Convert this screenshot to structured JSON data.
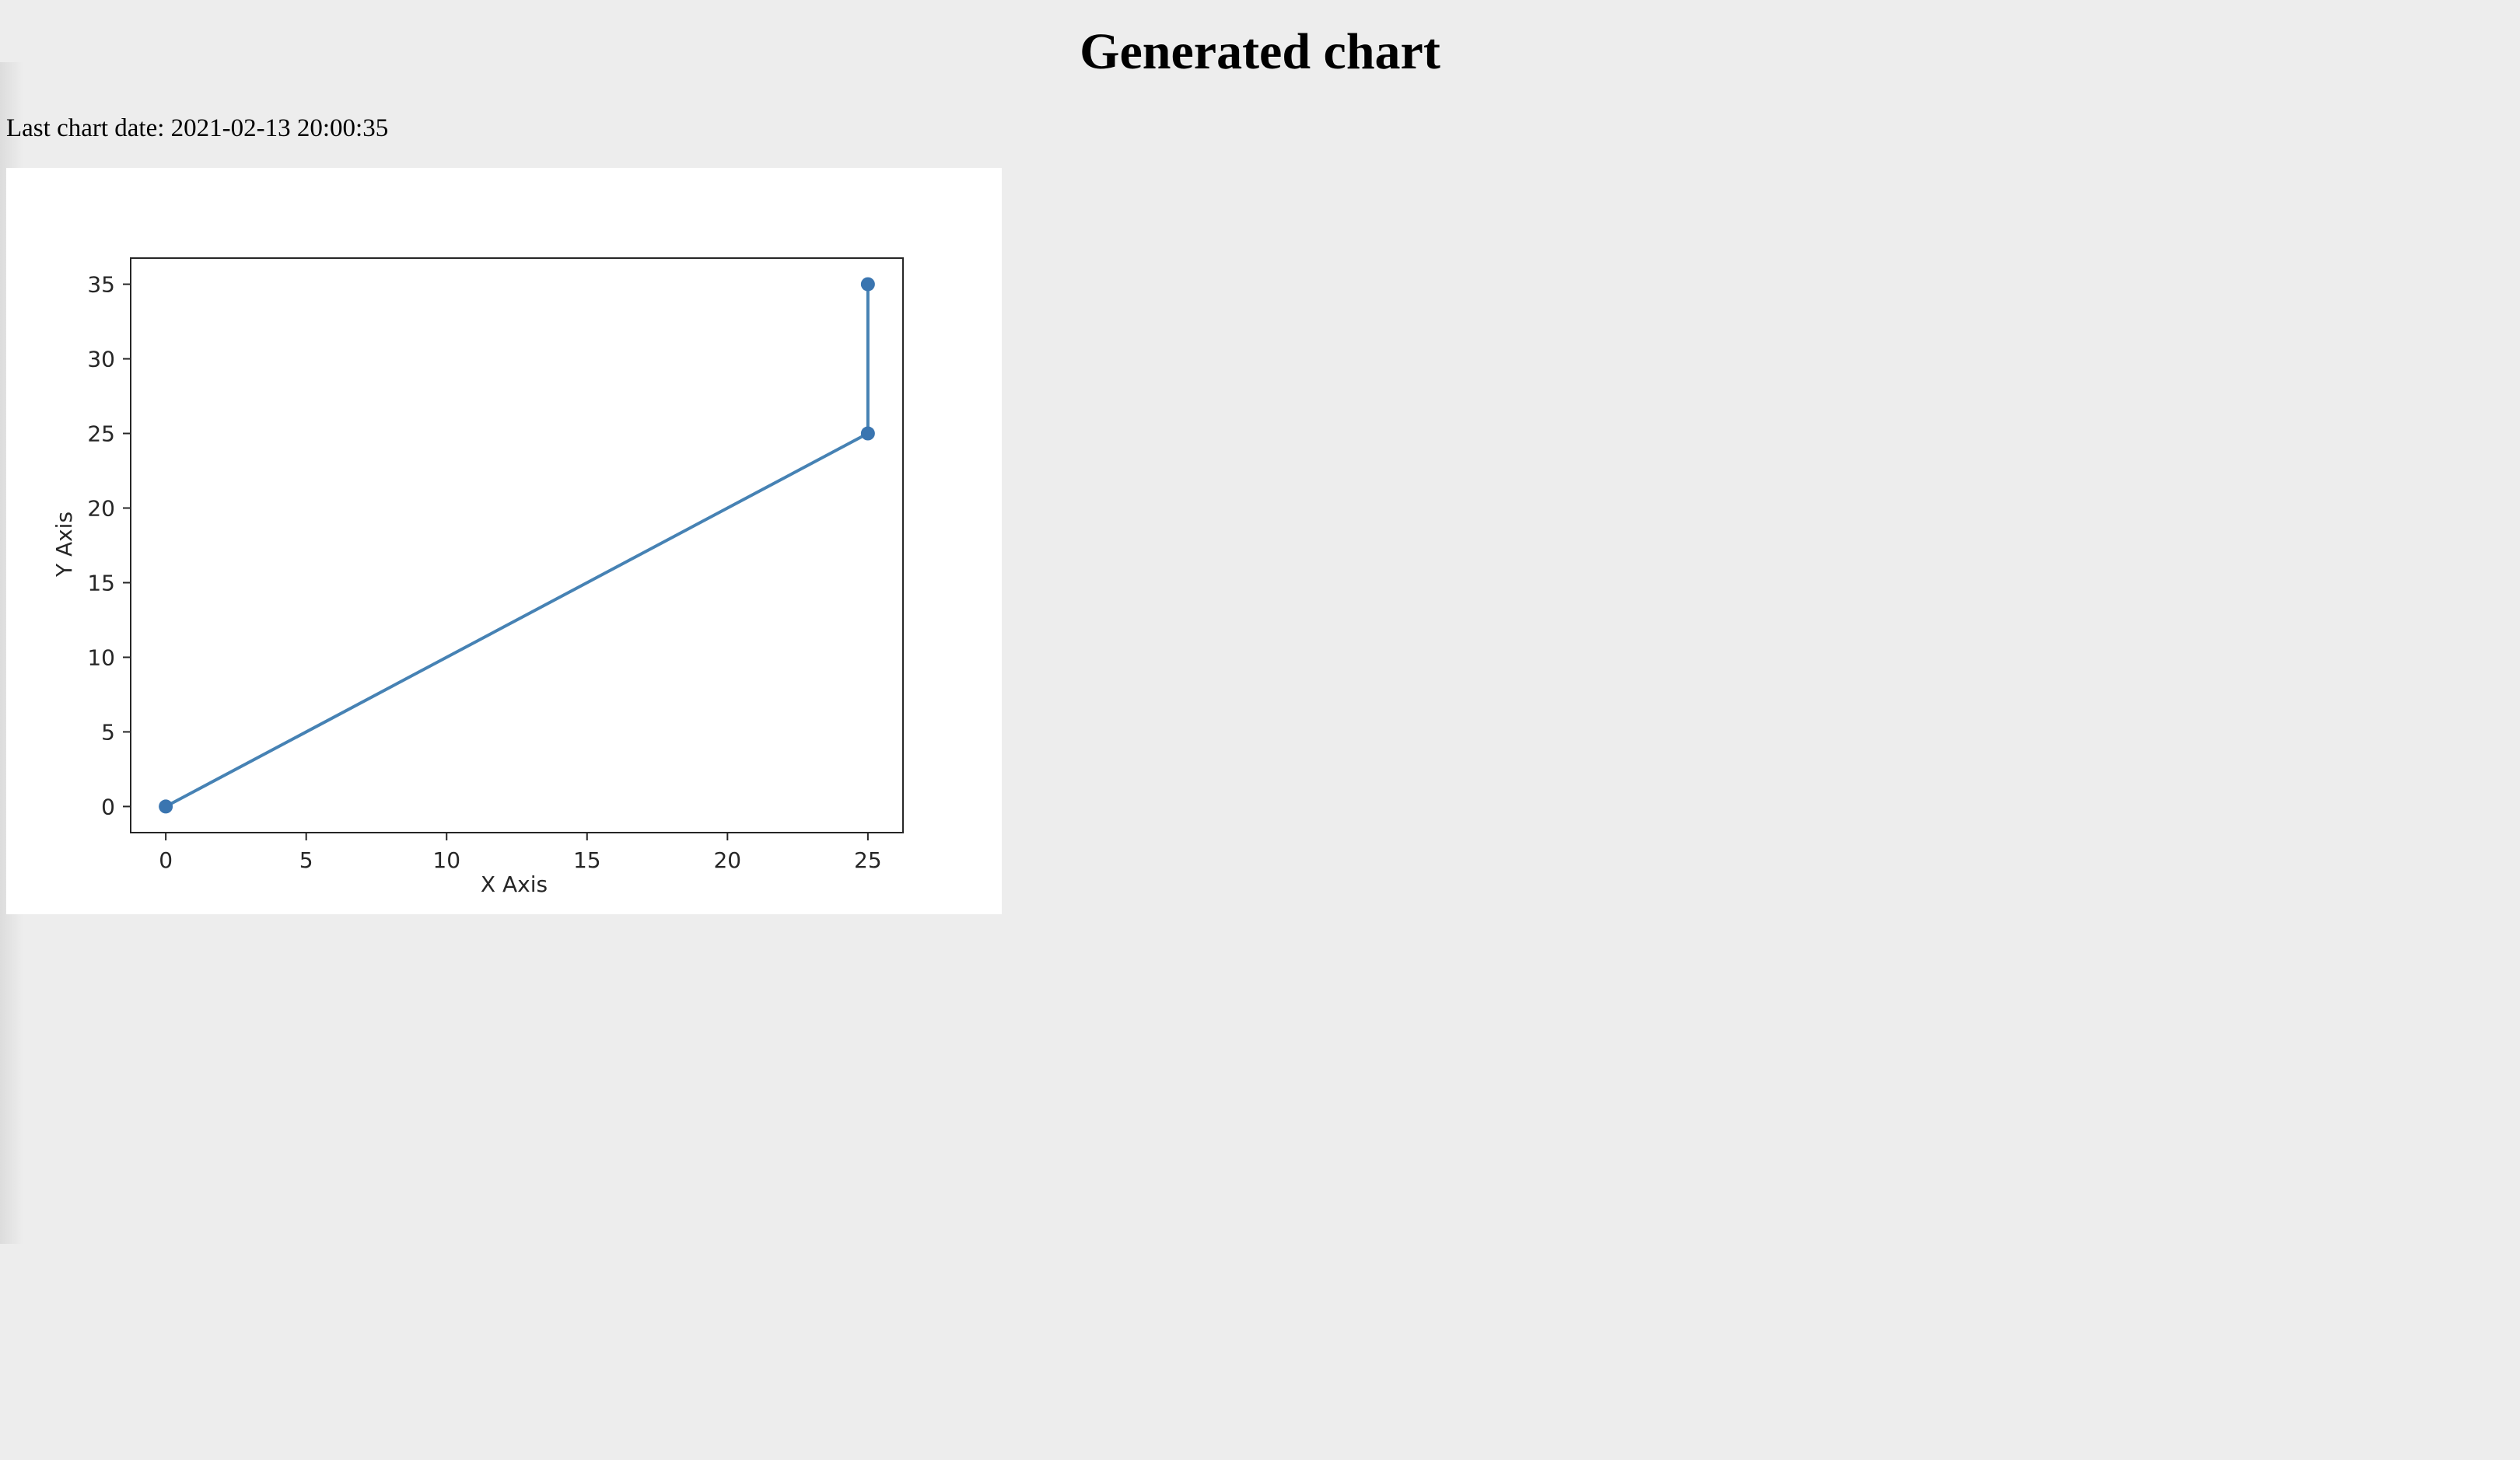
{
  "page": {
    "title": "Generated chart",
    "date_prefix": "Last chart date:",
    "date_value": "2021-02-13 20:00:35"
  },
  "colors": {
    "page_background": "#ededed",
    "line": "#4682b4",
    "marker": "#3a75b0",
    "axes": "#262626"
  },
  "chart_data": {
    "type": "line",
    "title": "",
    "xlabel": "X Axis",
    "ylabel": "Y Axis",
    "xlim": [
      -1.25,
      26.25
    ],
    "ylim": [
      -1.75,
      36.75
    ],
    "xticks": [
      0,
      5,
      10,
      15,
      20,
      25
    ],
    "yticks": [
      0,
      5,
      10,
      15,
      20,
      25,
      30,
      35
    ],
    "grid": false,
    "markers": "circle",
    "series": [
      {
        "x": [
          0,
          25,
          25
        ],
        "y": [
          0,
          25,
          35
        ]
      }
    ]
  }
}
